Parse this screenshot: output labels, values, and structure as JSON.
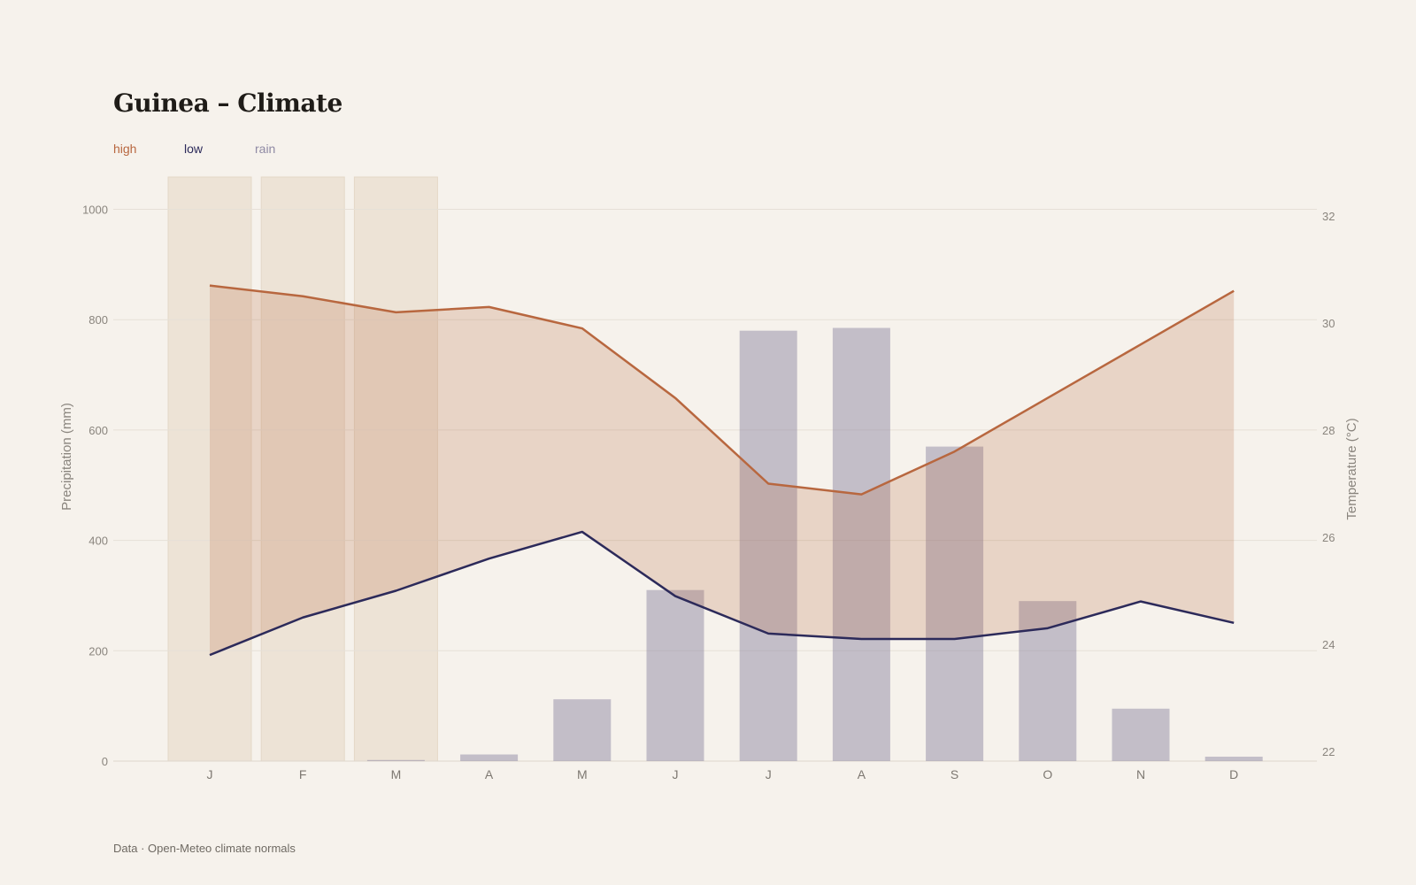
{
  "title": "Guinea – Climate",
  "legend": {
    "high": {
      "label": "high",
      "color": "#b8673f"
    },
    "low": {
      "label": "low",
      "color": "#2c2a5a"
    },
    "rain": {
      "label": "rain",
      "color": "#8f8aa4"
    }
  },
  "footer": "Data · Open-Meteo climate normals",
  "chart_data": {
    "type": "bar+line",
    "categories": [
      "J",
      "F",
      "M",
      "A",
      "M",
      "J",
      "J",
      "A",
      "S",
      "O",
      "N",
      "D"
    ],
    "highlighted_categories": [
      0,
      1,
      2
    ],
    "series": [
      {
        "name": "rain",
        "axis": "left",
        "type": "bar",
        "color": "#8f8aa4",
        "values": [
          0,
          0,
          2,
          12,
          112,
          310,
          780,
          785,
          570,
          290,
          95,
          8
        ]
      },
      {
        "name": "high",
        "axis": "right",
        "type": "line",
        "color": "#b8673f",
        "values": [
          30.7,
          30.5,
          30.2,
          30.3,
          29.9,
          28.6,
          27.0,
          26.8,
          27.6,
          28.6,
          29.6,
          30.6
        ]
      },
      {
        "name": "low",
        "axis": "right",
        "type": "line",
        "color": "#2c2a5a",
        "values": [
          23.8,
          24.5,
          25.0,
          25.6,
          26.1,
          24.9,
          24.2,
          24.1,
          24.1,
          24.3,
          24.8,
          24.4
        ]
      }
    ],
    "band_between": [
      "high",
      "low"
    ],
    "y_left": {
      "label": "Precipitation (mm)",
      "ticks": [
        0,
        200,
        400,
        600,
        800,
        1000
      ],
      "range": [
        0,
        1000
      ]
    },
    "y_right": {
      "label": "Temperature (°C)",
      "ticks": [
        22,
        24,
        26,
        28,
        30,
        32
      ],
      "range": [
        22,
        32
      ]
    },
    "grid": true
  }
}
